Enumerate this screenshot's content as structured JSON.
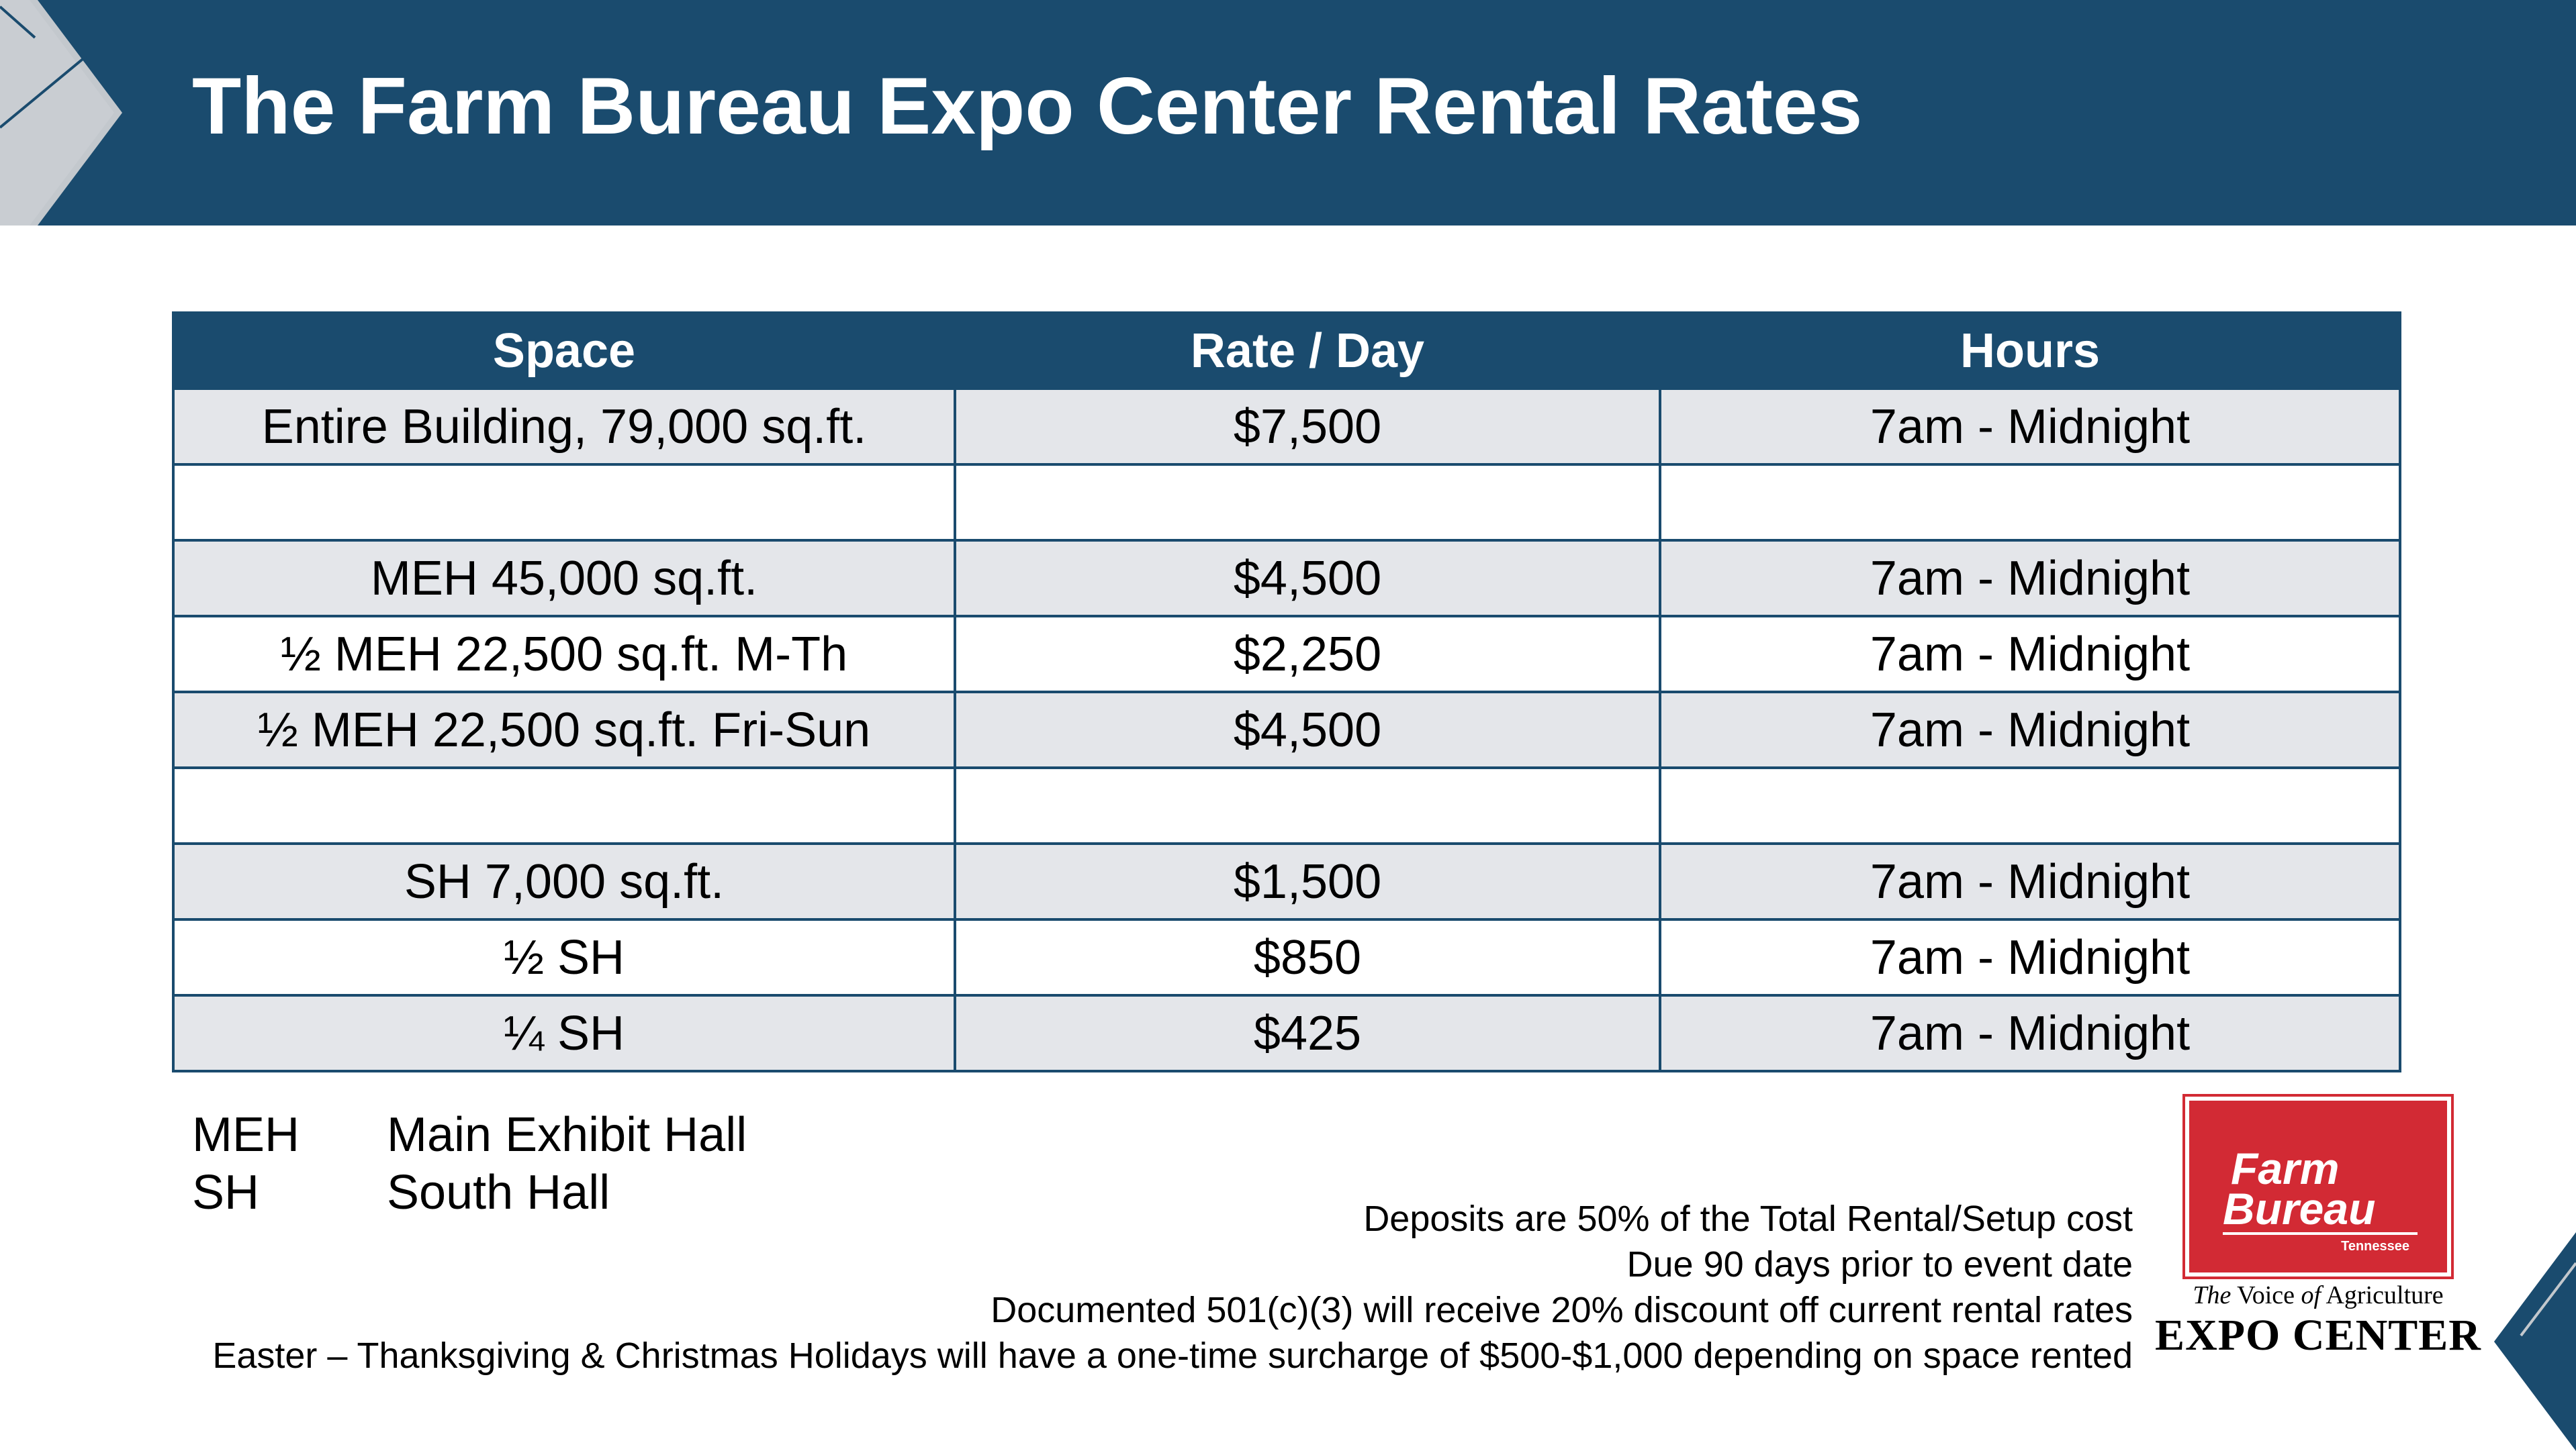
{
  "title": "The Farm Bureau Expo Center Rental Rates",
  "table": {
    "headers": [
      "Space",
      "Rate / Day",
      "Hours"
    ],
    "rows": [
      [
        "Entire Building, 79,000 sq.ft.",
        "$7,500",
        "7am - Midnight"
      ],
      [
        "",
        "",
        ""
      ],
      [
        "MEH 45,000 sq.ft.",
        "$4,500",
        "7am - Midnight"
      ],
      [
        "½ MEH 22,500 sq.ft.  M-Th",
        "$2,250",
        "7am - Midnight"
      ],
      [
        "½ MEH 22,500 sq.ft.  Fri-Sun",
        "$4,500",
        "7am - Midnight"
      ],
      [
        "",
        "",
        ""
      ],
      [
        "SH 7,000 sq.ft.",
        "$1,500",
        "7am - Midnight"
      ],
      [
        "½ SH",
        "$850",
        "7am - Midnight"
      ],
      [
        "¼ SH",
        "$425",
        "7am - Midnight"
      ]
    ]
  },
  "legend": [
    {
      "abbr": "MEH",
      "full": "Main Exhibit Hall"
    },
    {
      "abbr": "SH",
      "full": "South Hall"
    }
  ],
  "notes": [
    "Deposits are 50% of the Total Rental/Setup cost",
    "Due 90 days prior to event date",
    "Documented 501(c)(3) will receive 20% discount off current rental rates",
    "Easter – Thanksgiving & Christmas Holidays will have a one-time surcharge of $500-$1,000 depending on space rented"
  ],
  "logo": {
    "line1": "Farm",
    "line2": "Bureau",
    "state": "Tennessee",
    "tagline_prefix": "The",
    "tagline_middle": "Voice",
    "tagline_of": "of",
    "tagline_suffix": "Agriculture",
    "expo": "EXPO CENTER"
  },
  "colors": {
    "header": "#1a4b6e",
    "row_shade": "#e4e6ea",
    "logo_red": "#d22a34"
  }
}
